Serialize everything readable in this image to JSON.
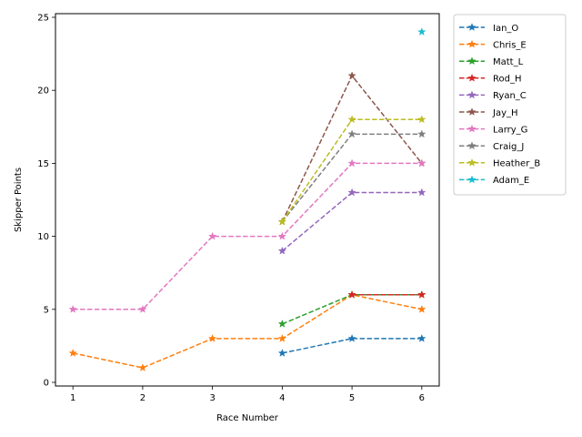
{
  "chart_data": {
    "type": "line",
    "title": "",
    "xlabel": "Race Number",
    "ylabel": "Skipper Points",
    "xlim": [
      0.75,
      6.25
    ],
    "ylim": [
      -0.25,
      25.25
    ],
    "xticks": [
      1,
      2,
      3,
      4,
      5,
      6
    ],
    "yticks": [
      0,
      5,
      10,
      15,
      20,
      25
    ],
    "grid": false,
    "legend_position": "outside-right",
    "line_style": "dashed",
    "marker": "star",
    "series": [
      {
        "name": "Ian_O",
        "color": "#1f77b4",
        "points": [
          [
            4,
            2
          ],
          [
            5,
            3
          ],
          [
            6,
            3
          ]
        ]
      },
      {
        "name": "Chris_E",
        "color": "#ff7f0e",
        "points": [
          [
            1,
            2
          ],
          [
            2,
            1
          ],
          [
            3,
            3
          ],
          [
            4,
            3
          ],
          [
            5,
            6
          ],
          [
            6,
            5
          ]
        ]
      },
      {
        "name": "Matt_L",
        "color": "#2ca02c",
        "points": [
          [
            4,
            4
          ],
          [
            5,
            6
          ],
          [
            6,
            6
          ]
        ]
      },
      {
        "name": "Rod_H",
        "color": "#d62728",
        "points": [
          [
            5,
            6
          ],
          [
            6,
            6
          ]
        ]
      },
      {
        "name": "Ryan_C",
        "color": "#9467bd",
        "points": [
          [
            4,
            9
          ],
          [
            5,
            13
          ],
          [
            6,
            13
          ]
        ]
      },
      {
        "name": "Jay_H",
        "color": "#8c564b",
        "points": [
          [
            4,
            11
          ],
          [
            5,
            21
          ],
          [
            6,
            15
          ]
        ]
      },
      {
        "name": "Larry_G",
        "color": "#e377c2",
        "points": [
          [
            1,
            5
          ],
          [
            2,
            5
          ],
          [
            3,
            10
          ],
          [
            4,
            10
          ],
          [
            5,
            15
          ],
          [
            6,
            15
          ]
        ]
      },
      {
        "name": "Craig_J",
        "color": "#7f7f7f",
        "points": [
          [
            4,
            11
          ],
          [
            5,
            17
          ],
          [
            6,
            17
          ]
        ]
      },
      {
        "name": "Heather_B",
        "color": "#bcbd22",
        "points": [
          [
            4,
            11
          ],
          [
            5,
            18
          ],
          [
            6,
            18
          ]
        ]
      },
      {
        "name": "Adam_E",
        "color": "#17becf",
        "points": [
          [
            6,
            24
          ]
        ]
      }
    ]
  }
}
